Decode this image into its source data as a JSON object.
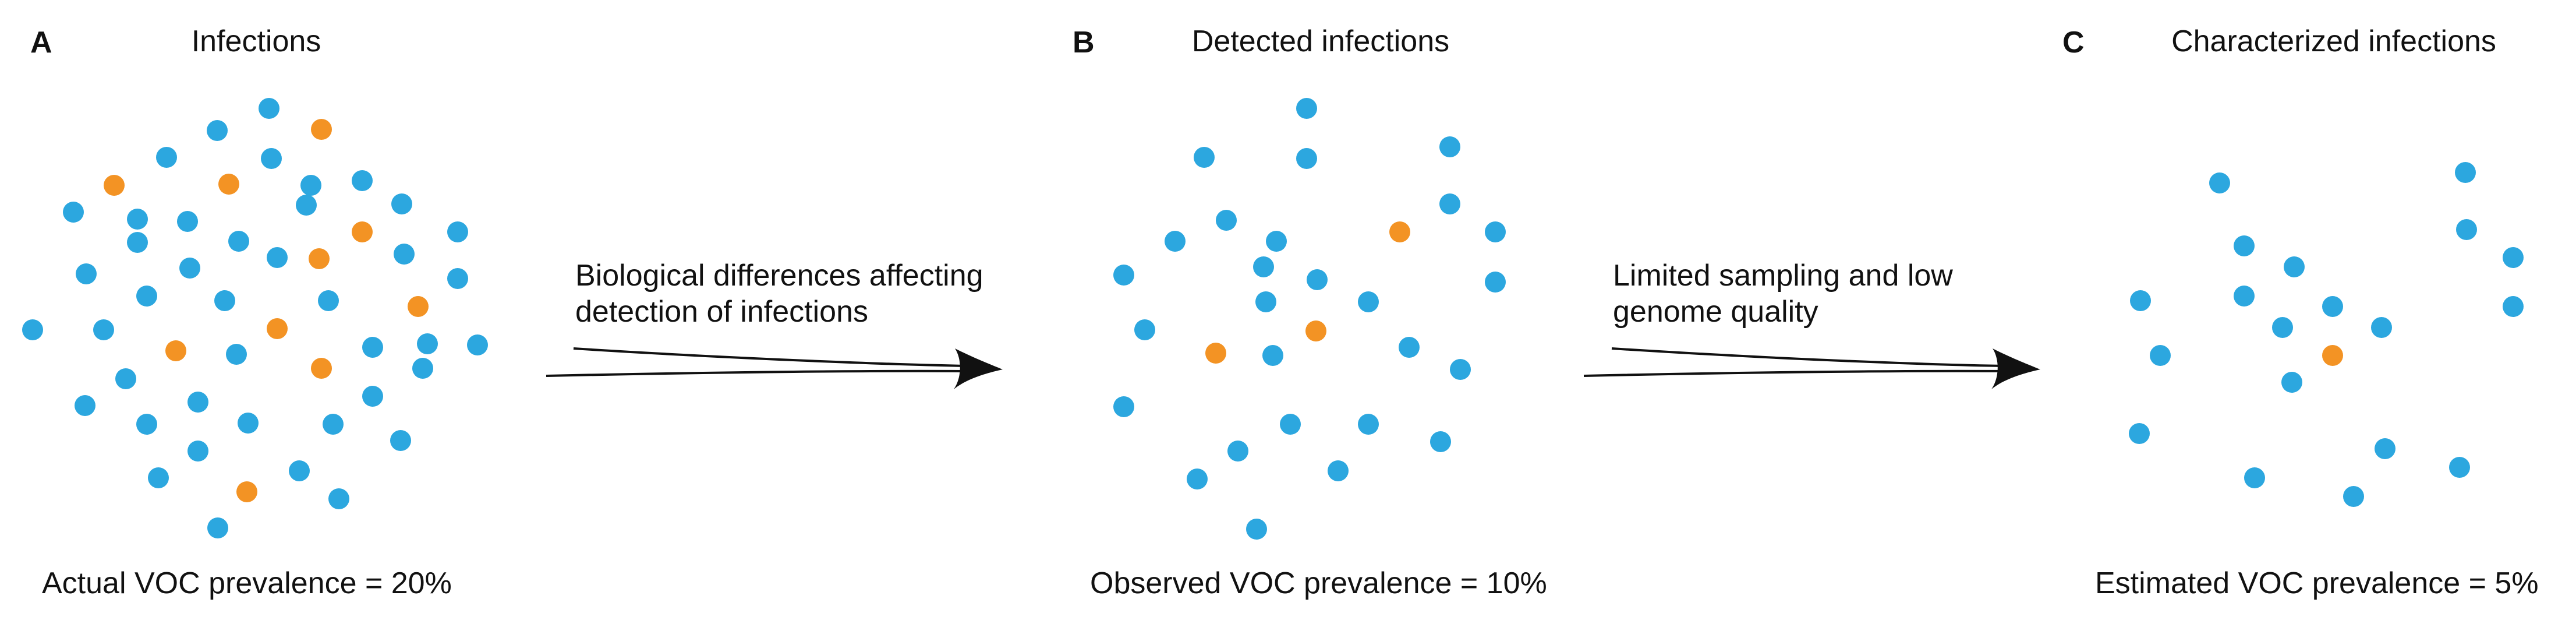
{
  "colors": {
    "non_voc_dot": "#2CA7DF",
    "voc_dot": "#F39324",
    "text": "#111111",
    "arrow": "#111111"
  },
  "panels": [
    {
      "letter": "A",
      "title": "Infections",
      "prevalence": "Actual VOC prevalence = 20%",
      "total_dots": 50,
      "voc_dots": 10
    },
    {
      "letter": "B",
      "title": "Detected infections",
      "prevalence": "Observed VOC prevalence = 10%",
      "total_dots": 30,
      "voc_dots": 3
    },
    {
      "letter": "C",
      "title": "Characterized infections",
      "prevalence": "Estimated VOC prevalence = 5%",
      "total_dots": 20,
      "voc_dots": 1
    }
  ],
  "arrows": [
    {
      "label_line1": "Biological differences affecting",
      "label_line2": "detection of infections"
    },
    {
      "label_line1": "Limited sampling and low",
      "label_line2": "genome quality"
    }
  ]
}
